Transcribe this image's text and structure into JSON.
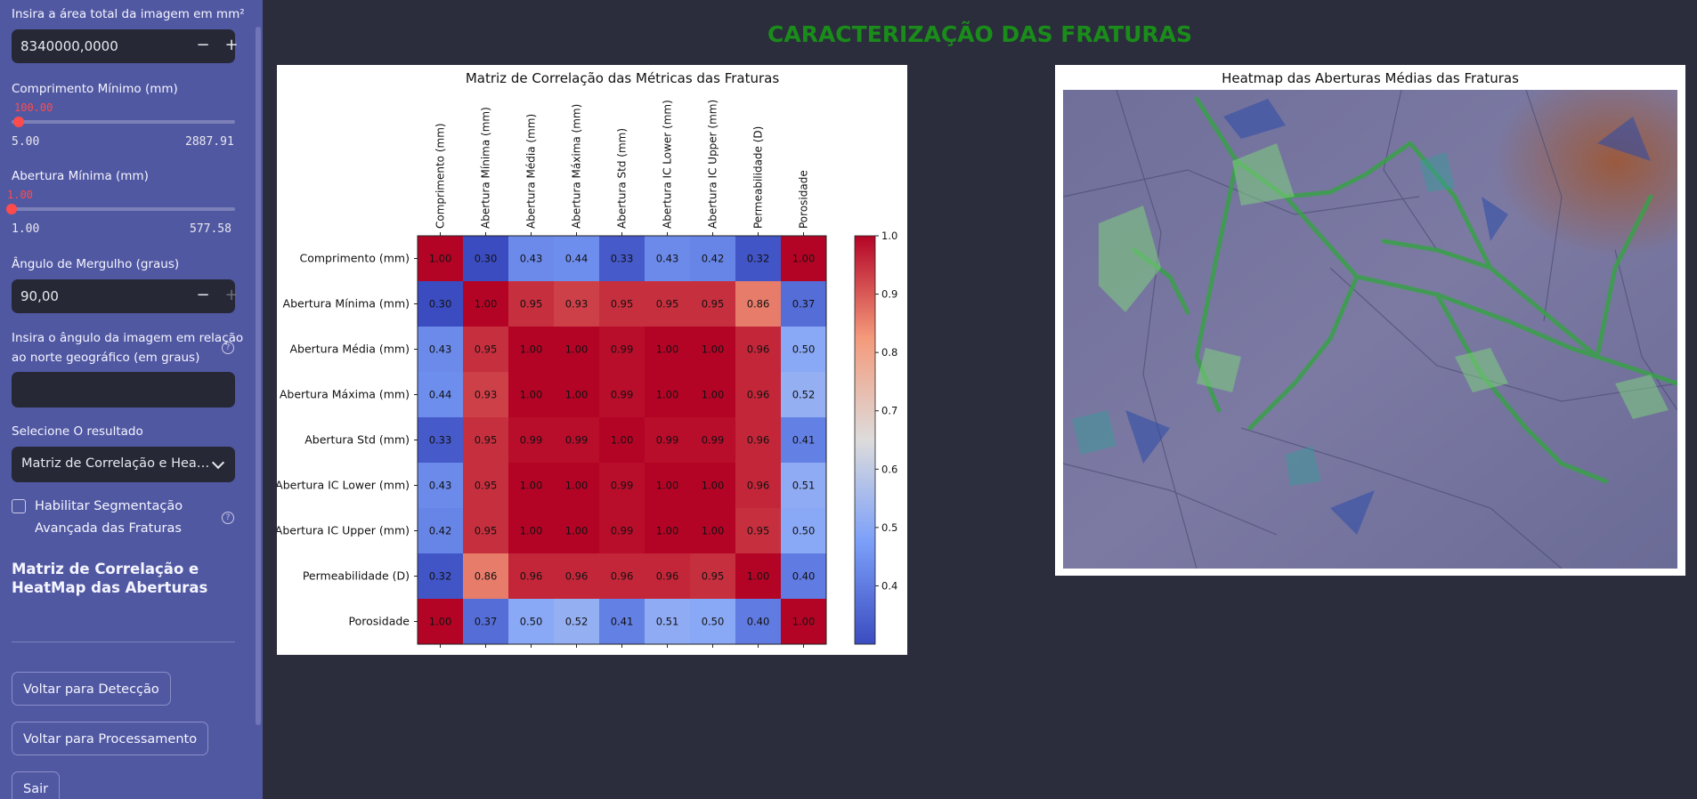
{
  "sidebar": {
    "area_label": "Insira a área total da imagem em mm²",
    "area_value": "8340000,0000",
    "minus": "−",
    "plus": "+",
    "comp_label": "Comprimento Mínimo (mm)",
    "comp_value": "100.00",
    "comp_min": "5.00",
    "comp_max": "2887.91",
    "comp_fraction": 0.033,
    "abert_label": "Abertura Mínima (mm)",
    "abert_value": "1.00",
    "abert_min": "1.00",
    "abert_max": "577.58",
    "abert_fraction": 0.0,
    "dip_label": "Ângulo de Mergulho (graus)",
    "dip_value": "90,00",
    "north_label_1": "Insira o ângulo da imagem em relação",
    "north_label_2": "ao norte geográfico (em graus)",
    "north_value": "",
    "help_glyph": "?",
    "result_label": "Selecione O resultado",
    "result_value": "Matriz de Correlação e Hea…",
    "checkbox_label_1": "Habilitar Segmentação",
    "checkbox_label_2": "Avançada das Fraturas",
    "section_title": "Matriz de Correlação e HeatMap das Aberturas",
    "btn_detect": "Voltar para Detecção",
    "btn_process": "Voltar para Processamento",
    "btn_exit": "Sair"
  },
  "main": {
    "title": "CARACTERIZAÇÃO DAS FRATURAS",
    "heatmap_title": "Heatmap das Aberturas Médias das Fraturas"
  },
  "chart_data": {
    "type": "heatmap",
    "title": "Matriz de Correlação das Métricas das Fraturas",
    "labels": [
      "Comprimento (mm)",
      "Abertura Mínima (mm)",
      "Abertura Média (mm)",
      "Abertura Máxima (mm)",
      "Abertura Std (mm)",
      "Abertura IC Lower (mm)",
      "Abertura IC Upper (mm)",
      "Permeabilidade (D)",
      "Porosidade"
    ],
    "matrix": [
      [
        1.0,
        0.3,
        0.43,
        0.44,
        0.33,
        0.43,
        0.42,
        0.32,
        1.0
      ],
      [
        0.3,
        1.0,
        0.95,
        0.93,
        0.95,
        0.95,
        0.95,
        0.86,
        0.37
      ],
      [
        0.43,
        0.95,
        1.0,
        1.0,
        0.99,
        1.0,
        1.0,
        0.96,
        0.5
      ],
      [
        0.44,
        0.93,
        1.0,
        1.0,
        0.99,
        1.0,
        1.0,
        0.96,
        0.52
      ],
      [
        0.33,
        0.95,
        0.99,
        0.99,
        1.0,
        0.99,
        0.99,
        0.96,
        0.41
      ],
      [
        0.43,
        0.95,
        1.0,
        1.0,
        0.99,
        1.0,
        1.0,
        0.96,
        0.51
      ],
      [
        0.42,
        0.95,
        1.0,
        1.0,
        0.99,
        1.0,
        1.0,
        0.95,
        0.5
      ],
      [
        0.32,
        0.86,
        0.96,
        0.96,
        0.96,
        0.96,
        0.95,
        1.0,
        0.4
      ],
      [
        1.0,
        0.37,
        0.5,
        0.52,
        0.41,
        0.51,
        0.5,
        0.4,
        1.0
      ]
    ],
    "colormap": "coolwarm",
    "vmin": 0.3,
    "vmax": 1.0,
    "colorbar_ticks": [
      "1.0",
      "0.9",
      "0.8",
      "0.7",
      "0.6",
      "0.5",
      "0.4"
    ]
  }
}
